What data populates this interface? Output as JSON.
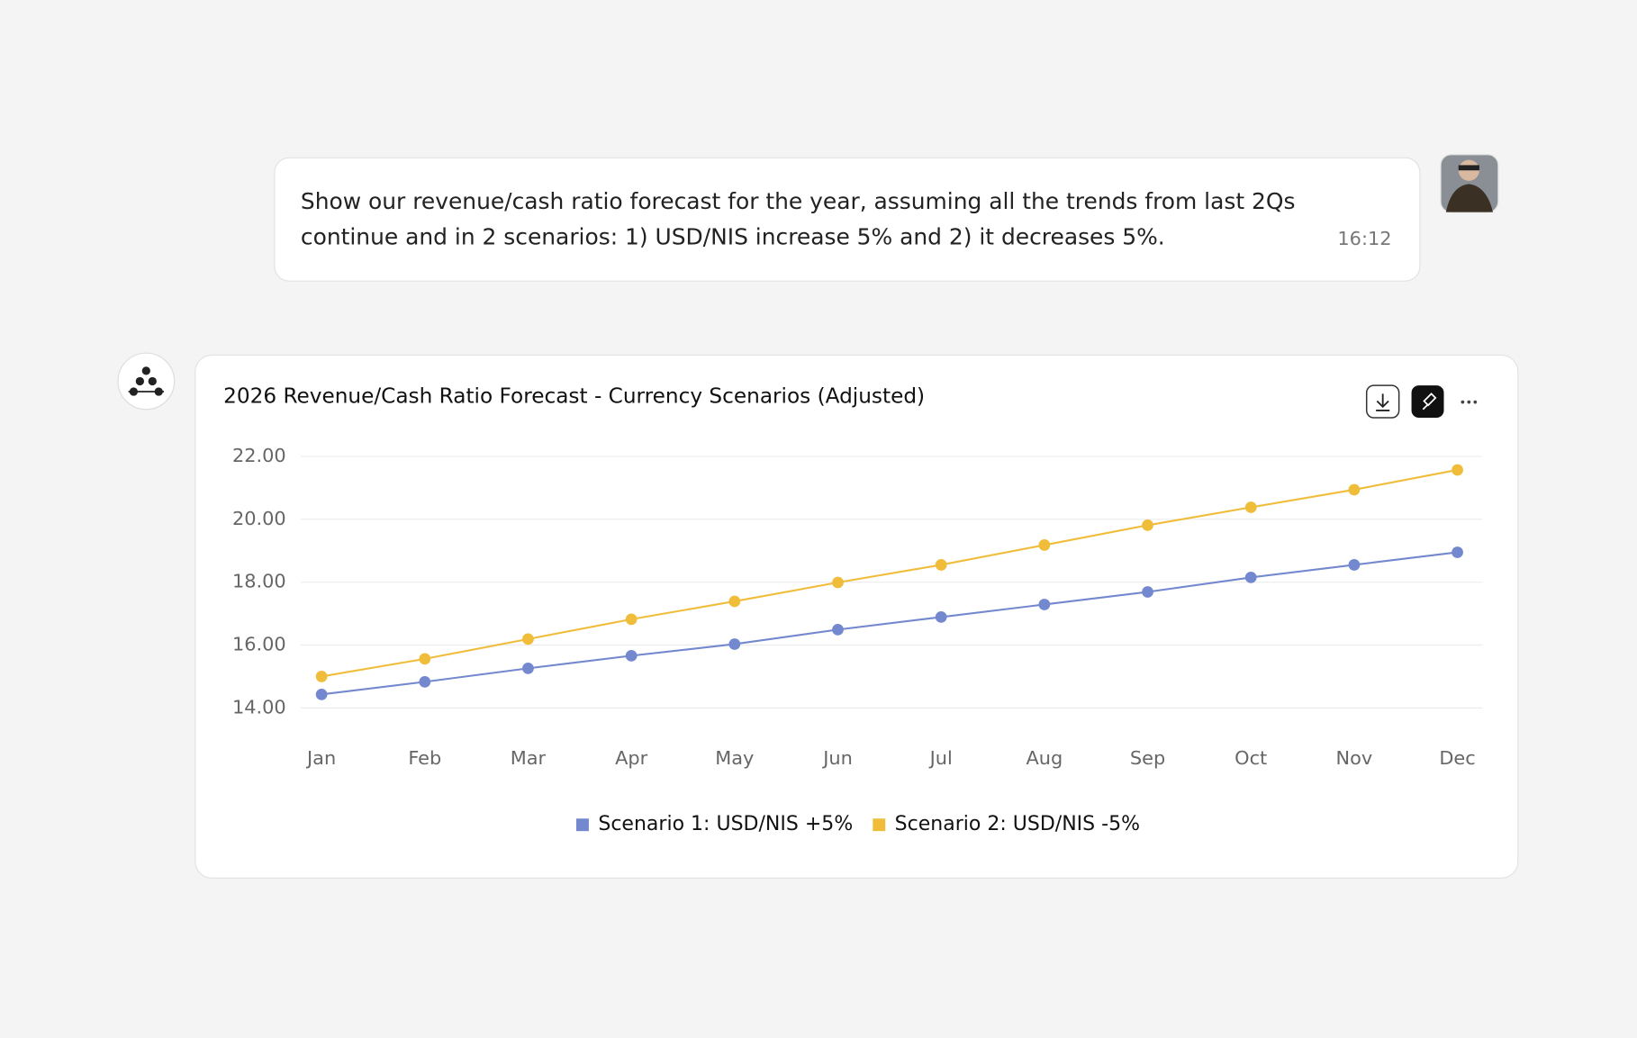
{
  "message": {
    "text_lines": [
      "Show our revenue/cash ratio forecast for the year, assuming all the trends from last 2Qs",
      "continue and in 2 scenarios: 1) USD/NIS increase 5% and 2) it decreases 5%."
    ],
    "time": "16:12"
  },
  "chart_data": {
    "type": "line",
    "title": "2026 Revenue/Cash Ratio Forecast - Currency Scenarios (Adjusted)",
    "categories": [
      "Jan",
      "Feb",
      "Mar",
      "Apr",
      "May",
      "Jun",
      "Jul",
      "Aug",
      "Sep",
      "Oct",
      "Nov",
      "Dec"
    ],
    "series": [
      {
        "name": "Scenario 1: USD/NIS +5%",
        "color": "#7388cf",
        "values": [
          14.43,
          14.83,
          15.26,
          15.66,
          16.03,
          16.49,
          16.89,
          17.29,
          17.69,
          18.15,
          18.55,
          18.95
        ]
      },
      {
        "name": "Scenario 2: USD/NIS -5%",
        "color": "#f0bd3a",
        "values": [
          15.0,
          15.56,
          16.19,
          16.82,
          17.39,
          17.99,
          18.55,
          19.18,
          19.81,
          20.38,
          20.94,
          21.57
        ]
      }
    ],
    "ylim": [
      14,
      22
    ],
    "yticks": [
      {
        "value": 14,
        "label": "14.00"
      },
      {
        "value": 16,
        "label": "16.00"
      },
      {
        "value": 18,
        "label": "18.00"
      },
      {
        "value": 20,
        "label": "20.00"
      },
      {
        "value": 22,
        "label": "22.00"
      }
    ],
    "grid": true,
    "legend": "bottom"
  }
}
